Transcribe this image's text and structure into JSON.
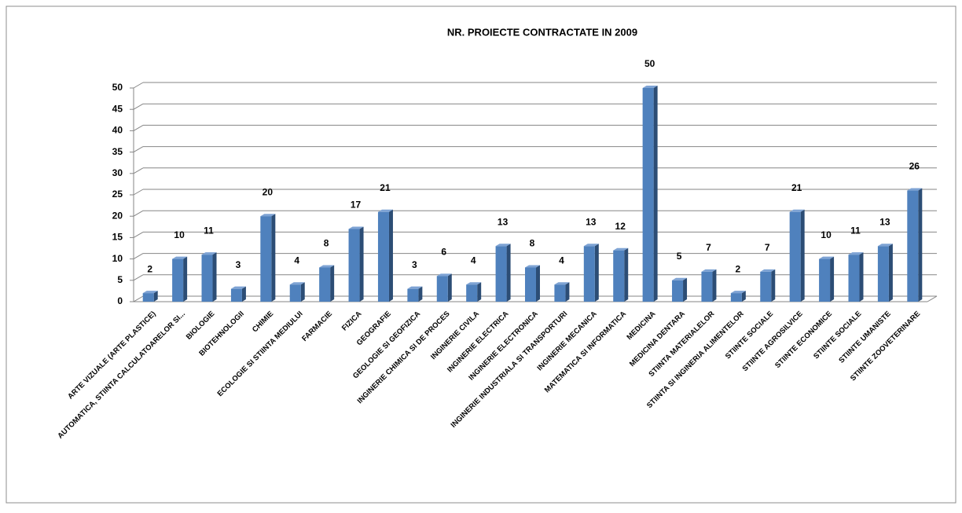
{
  "chart_data": {
    "type": "bar",
    "title": "NR. PROIECTE CONTRACTATE IN 2009",
    "categories": [
      "ARTE VIZUALE (ARTE PLASTICE)",
      "AUTOMATICA, STIINTA CALCULATOARELOR SI...",
      "BIOLOGIE",
      "BIOTEHNOLOGII",
      "CHIMIE",
      "ECOLOGIE SI STIINTA MEDIULUI",
      "FARMACIE",
      "FIZICA",
      "GEOGRAFIE",
      "GEOLOGIE SI GEOFIZICA",
      "INGINERIE CHIMICA SI DE PROCES",
      "INGINERIE CIVILA",
      "INGINERIE ELECTRICA",
      "INGINERIE ELECTRONICA",
      "INGINERIE INDUSTRIALA SI TRANSPORTURI",
      "INGINERIE MECANICA",
      "MATEMATICA SI INFORMATICA",
      "MEDICINA",
      "MEDICINA DENTARA",
      "STIINTA MATERIALELOR",
      "STIINTA SI INGINERIA ALIMENTELOR",
      "STIINTE SOCIALE",
      "STIINTE AGROSILVICE",
      "STIINTE ECONOMICE",
      "STIINTE SOCIALE",
      "STIINTE UMANISTE",
      "STIINTE ZOOVETERINARE"
    ],
    "values": [
      2,
      10,
      11,
      3,
      20,
      4,
      8,
      17,
      21,
      3,
      6,
      4,
      13,
      8,
      4,
      13,
      12,
      50,
      5,
      7,
      2,
      7,
      21,
      10,
      11,
      13,
      26
    ],
    "color": "#4f81bd",
    "ylim": [
      0,
      50
    ],
    "yticks": [
      0,
      5,
      10,
      15,
      20,
      25,
      30,
      35,
      40,
      45,
      50
    ],
    "grid": true
  }
}
